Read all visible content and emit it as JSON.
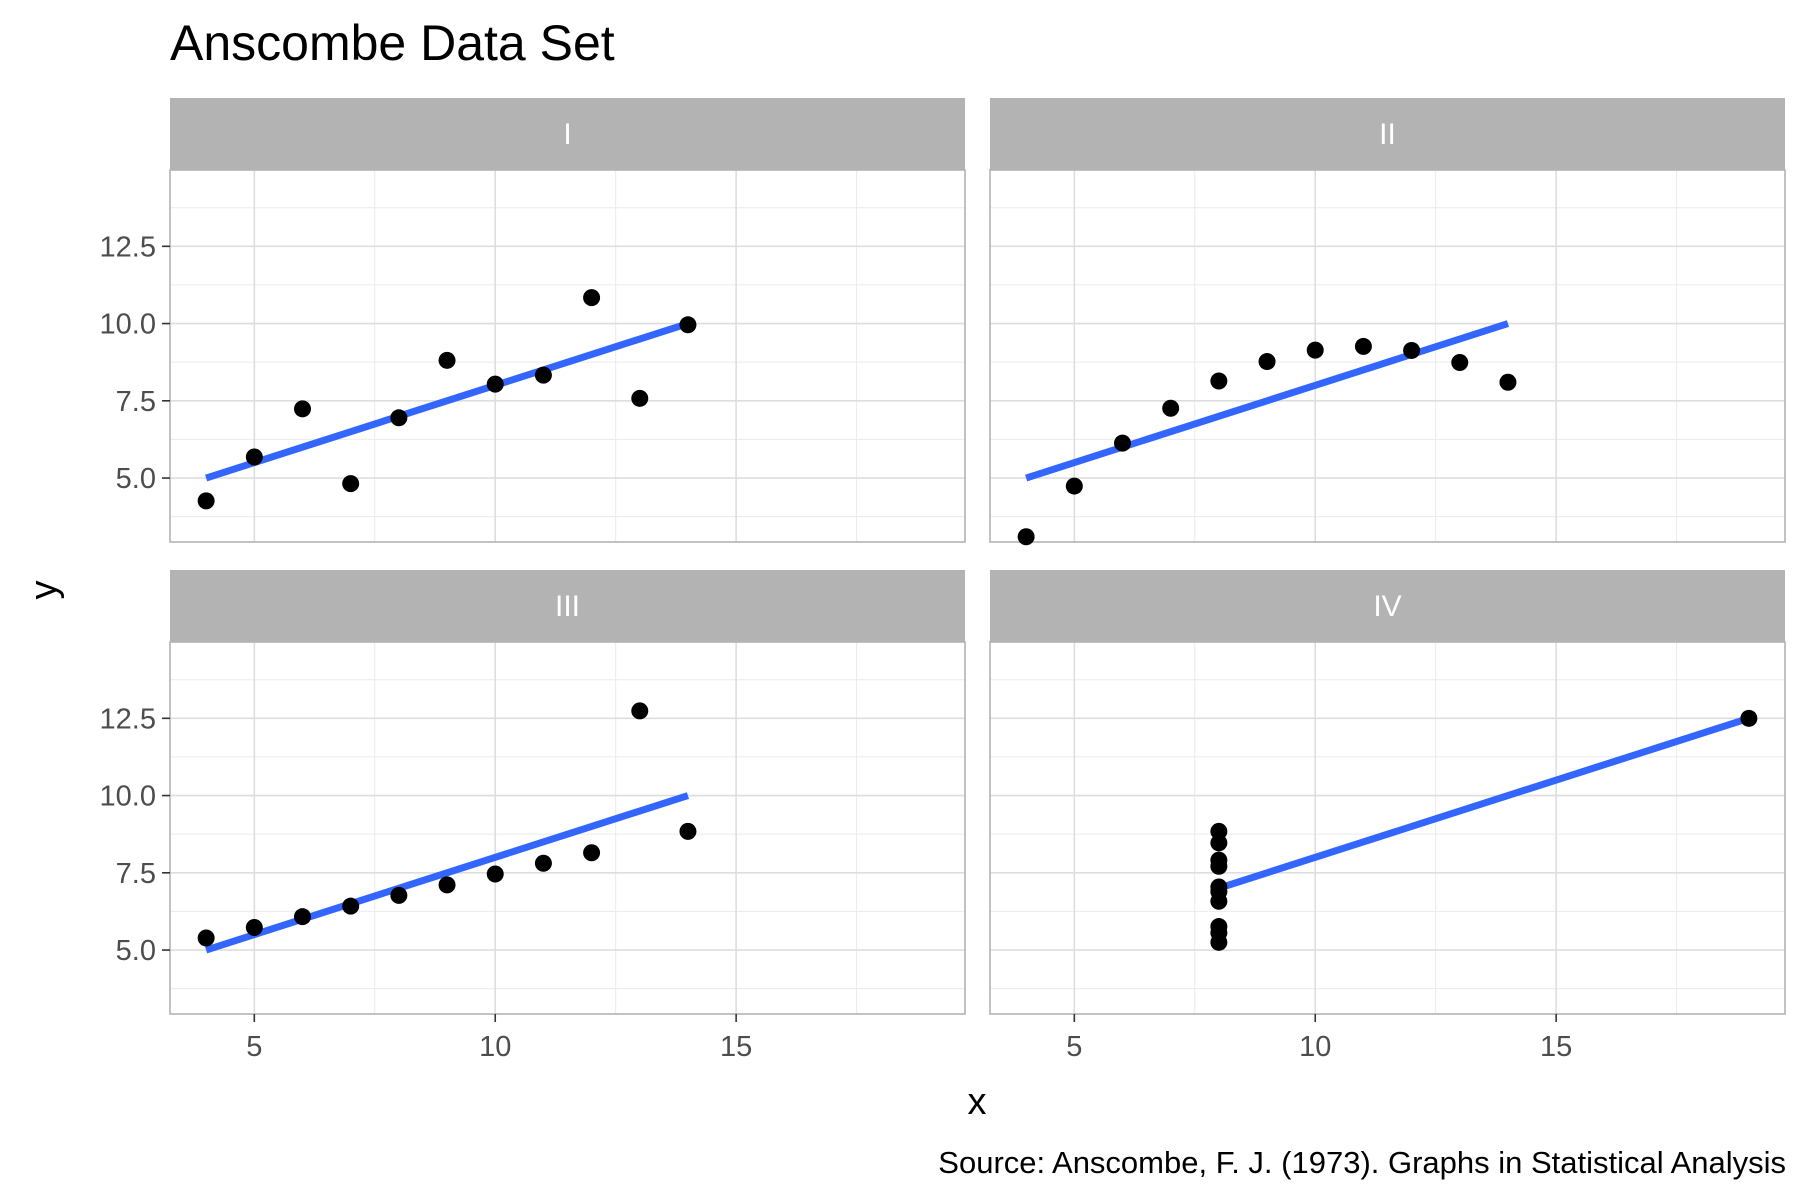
{
  "chart_data": {
    "type": "scatter",
    "title": "Anscombe Data Set",
    "xlabel": "x",
    "ylabel": "y",
    "caption": "Source: Anscombe, F. J. (1973). Graphs in Statistical Analysis",
    "xlim": [
      3.25,
      19.75
    ],
    "ylim": [
      2.93,
      14.97
    ],
    "x_ticks": [
      "5",
      "10",
      "15"
    ],
    "y_ticks": [
      "5.0",
      "7.5",
      "10.0",
      "12.5"
    ],
    "grid": true,
    "facet_layout": "2x2",
    "fit_line_color": "#3366ff",
    "point_color": "#000000",
    "strip_color": "#b3b3b3",
    "panels": [
      {
        "label": "I",
        "x": [
          10,
          8,
          13,
          9,
          11,
          14,
          6,
          4,
          12,
          7,
          5
        ],
        "y": [
          8.04,
          6.95,
          7.58,
          8.81,
          8.33,
          9.96,
          7.24,
          4.26,
          10.84,
          4.82,
          5.68
        ],
        "fit": {
          "x": [
            4,
            14
          ],
          "y": [
            5.0,
            10.0
          ]
        }
      },
      {
        "label": "II",
        "x": [
          10,
          8,
          13,
          9,
          11,
          14,
          6,
          4,
          12,
          7,
          5
        ],
        "y": [
          9.14,
          8.14,
          8.74,
          8.77,
          9.26,
          8.1,
          6.13,
          3.1,
          9.13,
          7.26,
          4.74
        ],
        "fit": {
          "x": [
            4,
            14
          ],
          "y": [
            5.0,
            10.0
          ]
        }
      },
      {
        "label": "III",
        "x": [
          10,
          8,
          13,
          9,
          11,
          14,
          6,
          4,
          12,
          7,
          5
        ],
        "y": [
          7.46,
          6.77,
          12.74,
          7.11,
          7.81,
          8.84,
          6.08,
          5.39,
          8.15,
          6.42,
          5.73
        ],
        "fit": {
          "x": [
            4,
            14
          ],
          "y": [
            5.0,
            10.0
          ]
        }
      },
      {
        "label": "IV",
        "x": [
          8,
          8,
          8,
          8,
          8,
          8,
          8,
          19,
          8,
          8,
          8
        ],
        "y": [
          6.58,
          5.76,
          7.71,
          8.84,
          8.47,
          7.04,
          5.25,
          12.5,
          5.56,
          7.91,
          6.89
        ],
        "fit": {
          "x": [
            8,
            19
          ],
          "y": [
            7.0,
            12.5
          ]
        }
      }
    ]
  }
}
